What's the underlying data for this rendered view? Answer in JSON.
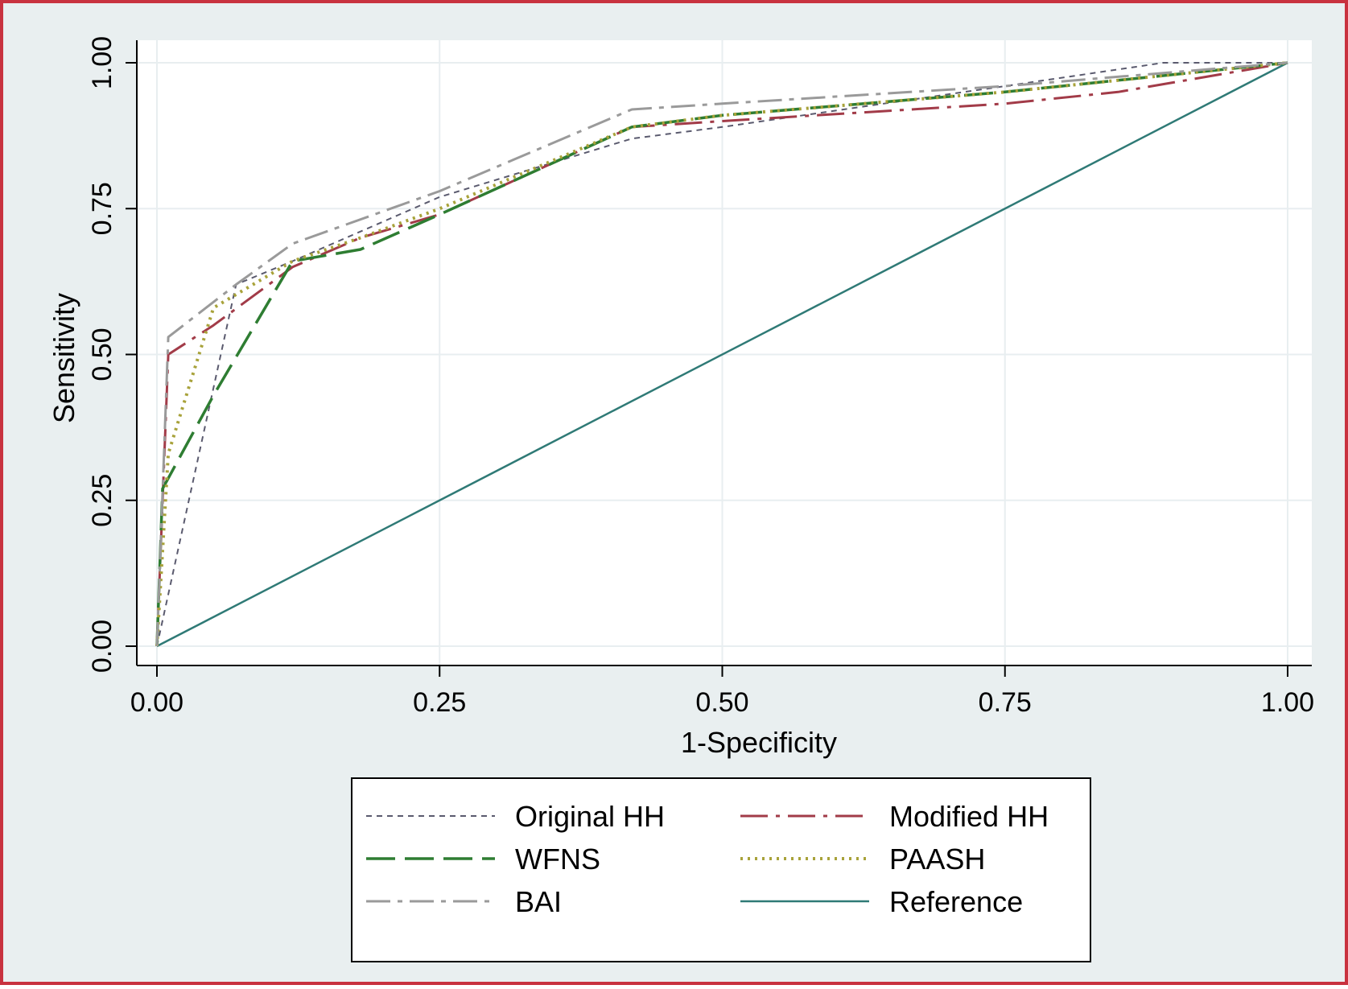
{
  "colors": {
    "frame_border": "#c8323f",
    "outer_background": "#e9eff0",
    "plot_background": "#ffffff",
    "grid": "#e8eef0",
    "axis": "#000000"
  },
  "chart_data": {
    "type": "line",
    "title": "",
    "xlabel": "1-Specificity",
    "ylabel": "Sensitivity",
    "xlim": [
      0,
      1
    ],
    "ylim": [
      0,
      1
    ],
    "x_ticks": [
      "0.00",
      "0.25",
      "0.50",
      "0.75",
      "1.00"
    ],
    "y_ticks": [
      "0.00",
      "0.25",
      "0.50",
      "0.75",
      "1.00"
    ],
    "grid": true,
    "legend_position": "bottom",
    "series": [
      {
        "name": "Original HH",
        "color": "#5a5a6e",
        "dash": "short-dash",
        "x": [
          0,
          0.07,
          0.12,
          0.25,
          0.42,
          0.5,
          0.75,
          0.89,
          1.0
        ],
        "y": [
          0,
          0.62,
          0.66,
          0.77,
          0.87,
          0.89,
          0.96,
          1.0,
          1.0
        ]
      },
      {
        "name": "Modified HH",
        "color": "#a23b48",
        "dash": "dash-dot",
        "x": [
          0,
          0.01,
          0.05,
          0.12,
          0.18,
          0.25,
          0.42,
          0.5,
          0.75,
          0.85,
          1.0
        ],
        "y": [
          0,
          0.5,
          0.55,
          0.65,
          0.7,
          0.74,
          0.89,
          0.9,
          0.93,
          0.95,
          1.0
        ]
      },
      {
        "name": "WFNS",
        "color": "#2e7d32",
        "dash": "long-dash",
        "x": [
          0,
          0.005,
          0.05,
          0.12,
          0.18,
          0.25,
          0.42,
          0.5,
          0.75,
          1.0
        ],
        "y": [
          0,
          0.27,
          0.43,
          0.66,
          0.68,
          0.74,
          0.89,
          0.91,
          0.95,
          1.0
        ]
      },
      {
        "name": "PAASH",
        "color": "#a8a23a",
        "dash": "dot",
        "x": [
          0,
          0.01,
          0.05,
          0.12,
          0.18,
          0.25,
          0.42,
          0.5,
          0.75,
          1.0
        ],
        "y": [
          0,
          0.33,
          0.58,
          0.66,
          0.7,
          0.75,
          0.89,
          0.91,
          0.95,
          1.0
        ]
      },
      {
        "name": "BAI",
        "color": "#9a9a9a",
        "dash": "long-dash-dot",
        "x": [
          0,
          0.01,
          0.07,
          0.12,
          0.25,
          0.42,
          0.5,
          0.75,
          1.0
        ],
        "y": [
          0,
          0.53,
          0.62,
          0.69,
          0.78,
          0.92,
          0.93,
          0.96,
          1.0
        ]
      },
      {
        "name": "Reference",
        "color": "#2f7a76",
        "dash": "solid",
        "x": [
          0,
          1
        ],
        "y": [
          0,
          1
        ]
      }
    ]
  }
}
